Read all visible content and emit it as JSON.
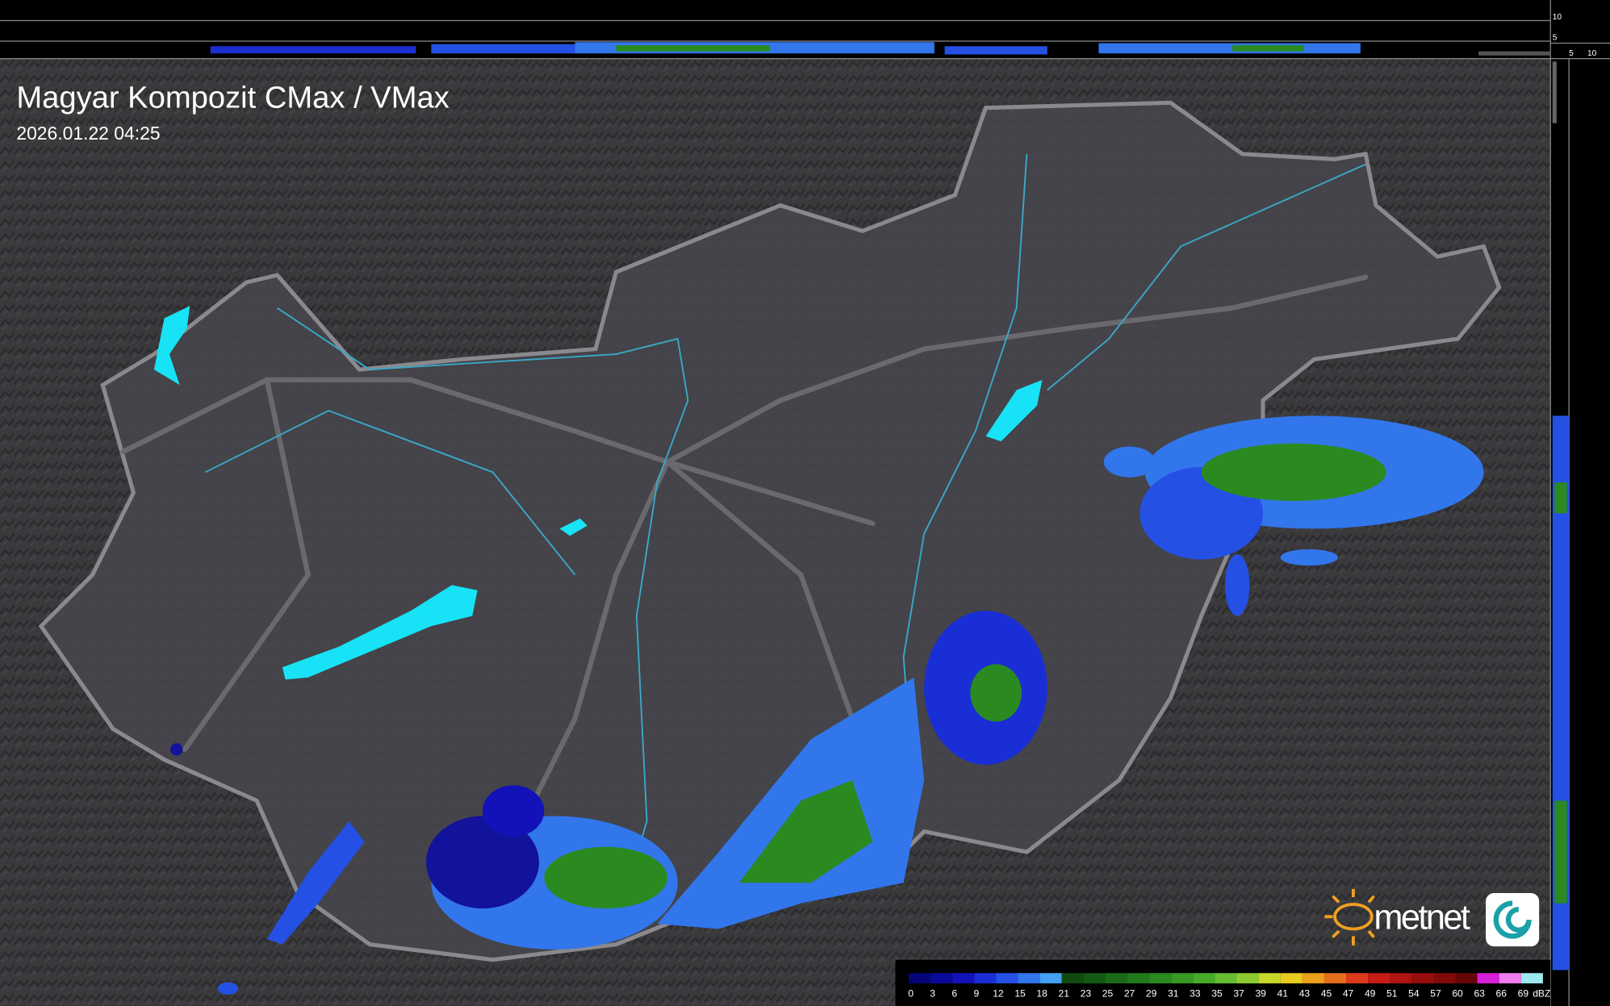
{
  "header": {
    "title": "Magyar Kompozit CMax / VMax",
    "timestamp": "2026.01.22 04:25"
  },
  "profile_labels": {
    "top": [
      "10",
      "5"
    ],
    "side": [
      "5",
      "10"
    ]
  },
  "logo": {
    "text": "metnet"
  },
  "legend": {
    "unit": "dBZ",
    "levels": [
      {
        "label": "0",
        "color": "#05057a"
      },
      {
        "label": "3",
        "color": "#0a0a9a"
      },
      {
        "label": "6",
        "color": "#1212b8"
      },
      {
        "label": "9",
        "color": "#1a2ed6"
      },
      {
        "label": "12",
        "color": "#2450e4"
      },
      {
        "label": "15",
        "color": "#3276ec"
      },
      {
        "label": "18",
        "color": "#44a0f2"
      },
      {
        "label": "21",
        "color": "#0f4a10"
      },
      {
        "label": "23",
        "color": "#145a14"
      },
      {
        "label": "25",
        "color": "#1b6a18"
      },
      {
        "label": "27",
        "color": "#227a1c"
      },
      {
        "label": "29",
        "color": "#2a8a20"
      },
      {
        "label": "31",
        "color": "#379a24"
      },
      {
        "label": "33",
        "color": "#48aa2a"
      },
      {
        "label": "35",
        "color": "#66bc30"
      },
      {
        "label": "37",
        "color": "#8ccc32"
      },
      {
        "label": "39",
        "color": "#c8d82a"
      },
      {
        "label": "41",
        "color": "#e8cc1e"
      },
      {
        "label": "43",
        "color": "#eca01c"
      },
      {
        "label": "45",
        "color": "#e66e1c"
      },
      {
        "label": "47",
        "color": "#dc3a1a"
      },
      {
        "label": "49",
        "color": "#c81c16"
      },
      {
        "label": "51",
        "color": "#b01412"
      },
      {
        "label": "54",
        "color": "#980e0e"
      },
      {
        "label": "57",
        "color": "#800a0a"
      },
      {
        "label": "60",
        "color": "#660606"
      },
      {
        "label": "63",
        "color": "#d81ed8"
      },
      {
        "label": "66",
        "color": "#f07cee"
      },
      {
        "label": "69",
        "color": "#9ce8ec"
      }
    ]
  }
}
